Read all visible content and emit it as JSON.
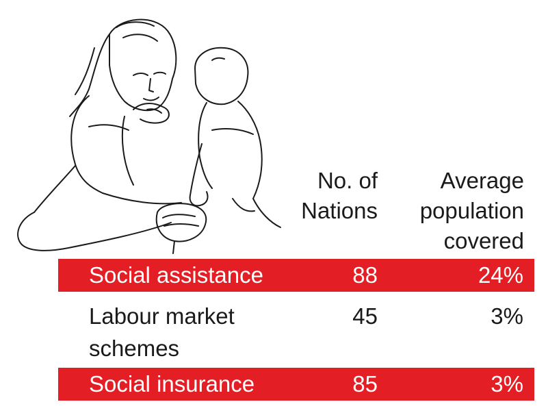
{
  "illustration": {
    "icon": "mother-feeding-child-line-drawing"
  },
  "colors": {
    "highlight_row": "#e31e24",
    "text": "#1a1a1a",
    "highlight_text": "#ffffff"
  },
  "chart_data": {
    "type": "table",
    "columns": [
      {
        "lines": [
          "No. of",
          "Nations"
        ]
      },
      {
        "lines": [
          "Average",
          "population",
          "covered"
        ]
      }
    ],
    "rows": [
      {
        "label": "Social assistance",
        "nations": "88",
        "coverage": "24%",
        "highlight": true
      },
      {
        "label": "Labour market schemes",
        "nations": "45",
        "coverage": "3%",
        "highlight": false
      },
      {
        "label": "Social insurance",
        "nations": "85",
        "coverage": "3%",
        "highlight": true
      }
    ]
  }
}
